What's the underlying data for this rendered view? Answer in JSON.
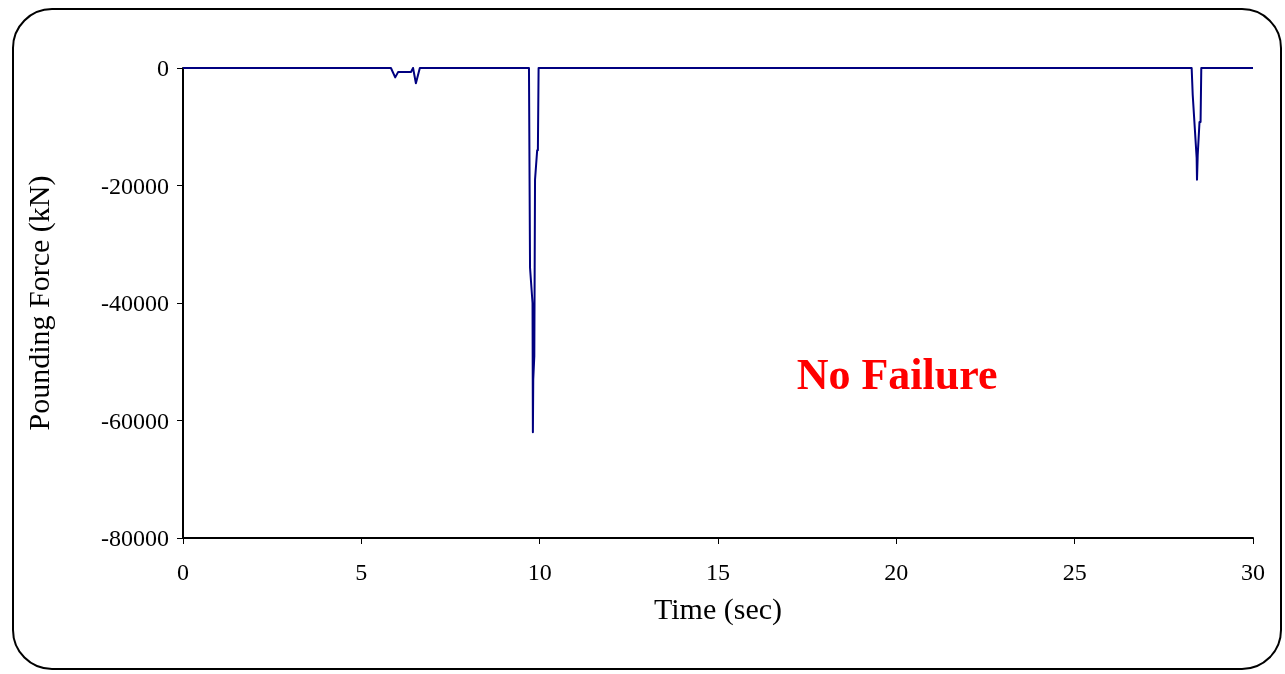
{
  "chart_data": {
    "type": "line",
    "xlabel": "Time (sec)",
    "ylabel": "Pounding Force (kN)",
    "annotations": [
      "No Failure"
    ],
    "xlim": [
      0,
      30
    ],
    "xticks": [
      0,
      5,
      10,
      15,
      20,
      25,
      30
    ],
    "ylim": [
      -80000,
      0
    ],
    "yticks": [
      -80000,
      -60000,
      -40000,
      -20000,
      0
    ],
    "grid": false,
    "marker": "none",
    "line_style": "solid",
    "series": [
      {
        "color": "#000080",
        "x": [
          0,
          5.83,
          5.95,
          6.03,
          6.39,
          6.45,
          6.53,
          6.64,
          9.7,
          9.73,
          9.8,
          9.81,
          9.82,
          9.85,
          9.87,
          9.93,
          9.95,
          9.97,
          28.28,
          28.31,
          28.42,
          28.43,
          28.45,
          28.5,
          28.53,
          28.55,
          30
        ],
        "values": [
          0,
          0,
          -1600,
          -700,
          -700,
          0,
          -2600,
          0,
          0,
          -34000,
          -40000,
          -62000,
          -53000,
          -49000,
          -19000,
          -14000,
          -14000,
          0,
          0,
          -4600,
          -15300,
          -19000,
          -14800,
          -9200,
          -9200,
          0,
          0
        ]
      }
    ]
  }
}
